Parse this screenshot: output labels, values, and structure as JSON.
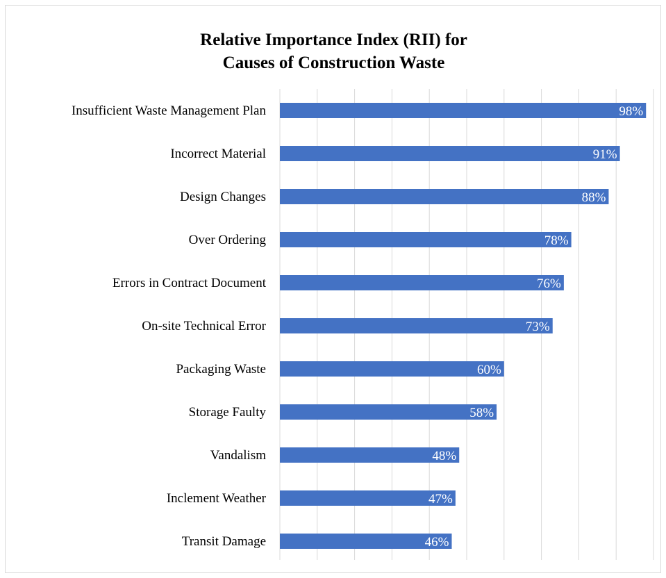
{
  "chart_data": {
    "type": "bar",
    "orientation": "horizontal",
    "title": "Relative Importance Index (RII) for Causes of Construction Waste",
    "title_lines": [
      "Relative Importance Index (RII) for",
      "Causes of Construction Waste"
    ],
    "categories": [
      "Insufficient Waste Management Plan",
      "Incorrect Material",
      "Design Changes",
      "Over Ordering",
      "Errors in Contract Document",
      "On-site Technical Error",
      "Packaging Waste",
      "Storage Faulty",
      "Vandalism",
      "Inclement Weather",
      "Transit Damage"
    ],
    "values": [
      98,
      91,
      88,
      78,
      76,
      73,
      60,
      58,
      48,
      47,
      46
    ],
    "data_labels": [
      "98%",
      "91%",
      "88%",
      "78%",
      "76%",
      "73%",
      "60%",
      "58%",
      "48%",
      "47%",
      "46%"
    ],
    "xlim": [
      0,
      100
    ],
    "grid": true,
    "bar_color": "#4472c4",
    "gridline_color": "#d9d9d9",
    "legend": "none"
  }
}
